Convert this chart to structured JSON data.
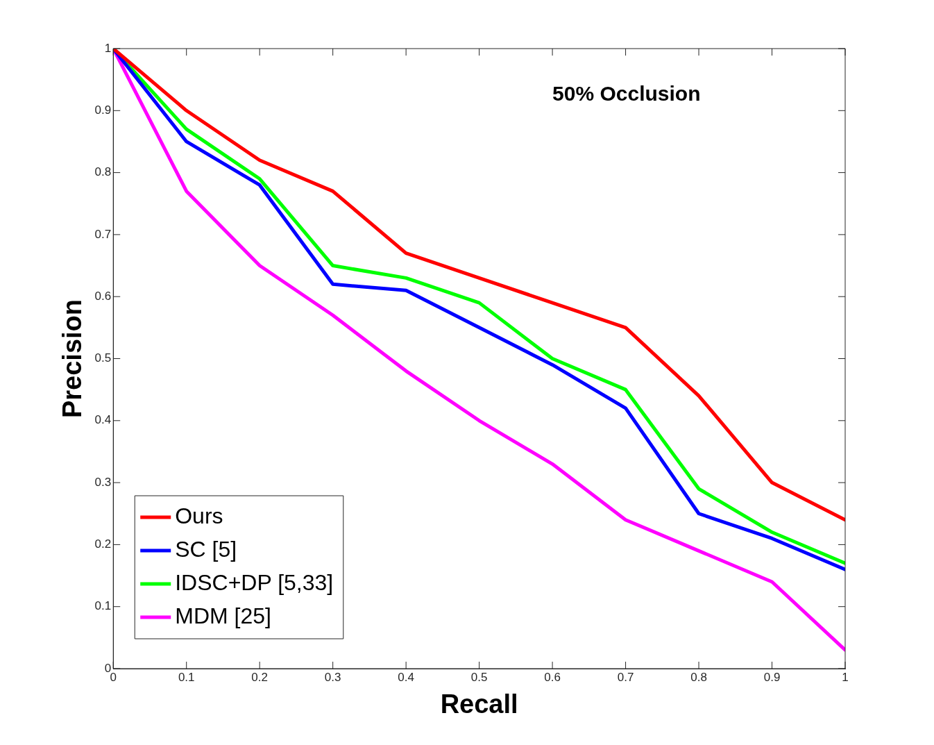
{
  "chart_data": {
    "type": "line",
    "xlabel": "Recall",
    "ylabel": "Precision",
    "annotations": [
      "50% Occlusion"
    ],
    "x": [
      0,
      0.1,
      0.2,
      0.3,
      0.4,
      0.5,
      0.6,
      0.7,
      0.8,
      0.9,
      1
    ],
    "xlim": [
      0,
      1
    ],
    "xticks": [
      0,
      0.1,
      0.2,
      0.3,
      0.4,
      0.5,
      0.6,
      0.7,
      0.8,
      0.9,
      1
    ],
    "ylim": [
      0,
      1
    ],
    "yticks": [
      0,
      0.1,
      0.2,
      0.3,
      0.4,
      0.5,
      0.6,
      0.7,
      0.8,
      0.9,
      1
    ],
    "grid": false,
    "legend": "bottom left",
    "marker": "none",
    "line_style": "solid",
    "series": [
      {
        "name": "Ours",
        "color": "#ff0000",
        "values": [
          1,
          0.9,
          0.82,
          0.77,
          0.67,
          0.63,
          0.59,
          0.55,
          0.44,
          0.3,
          0.24
        ]
      },
      {
        "name": "SC [5]",
        "color": "#0000ff",
        "values": [
          1,
          0.85,
          0.78,
          0.62,
          0.61,
          0.55,
          0.49,
          0.42,
          0.25,
          0.21,
          0.16
        ]
      },
      {
        "name": "IDSC+DP [5,33]",
        "color": "#00ff00",
        "values": [
          1,
          0.87,
          0.79,
          0.65,
          0.63,
          0.59,
          0.5,
          0.45,
          0.29,
          0.22,
          0.17
        ]
      },
      {
        "name": "MDM [25]",
        "color": "#ff00ff",
        "values": [
          1,
          0.77,
          0.65,
          0.57,
          0.48,
          0.4,
          0.33,
          0.24,
          0.19,
          0.14,
          0.03
        ]
      }
    ]
  }
}
